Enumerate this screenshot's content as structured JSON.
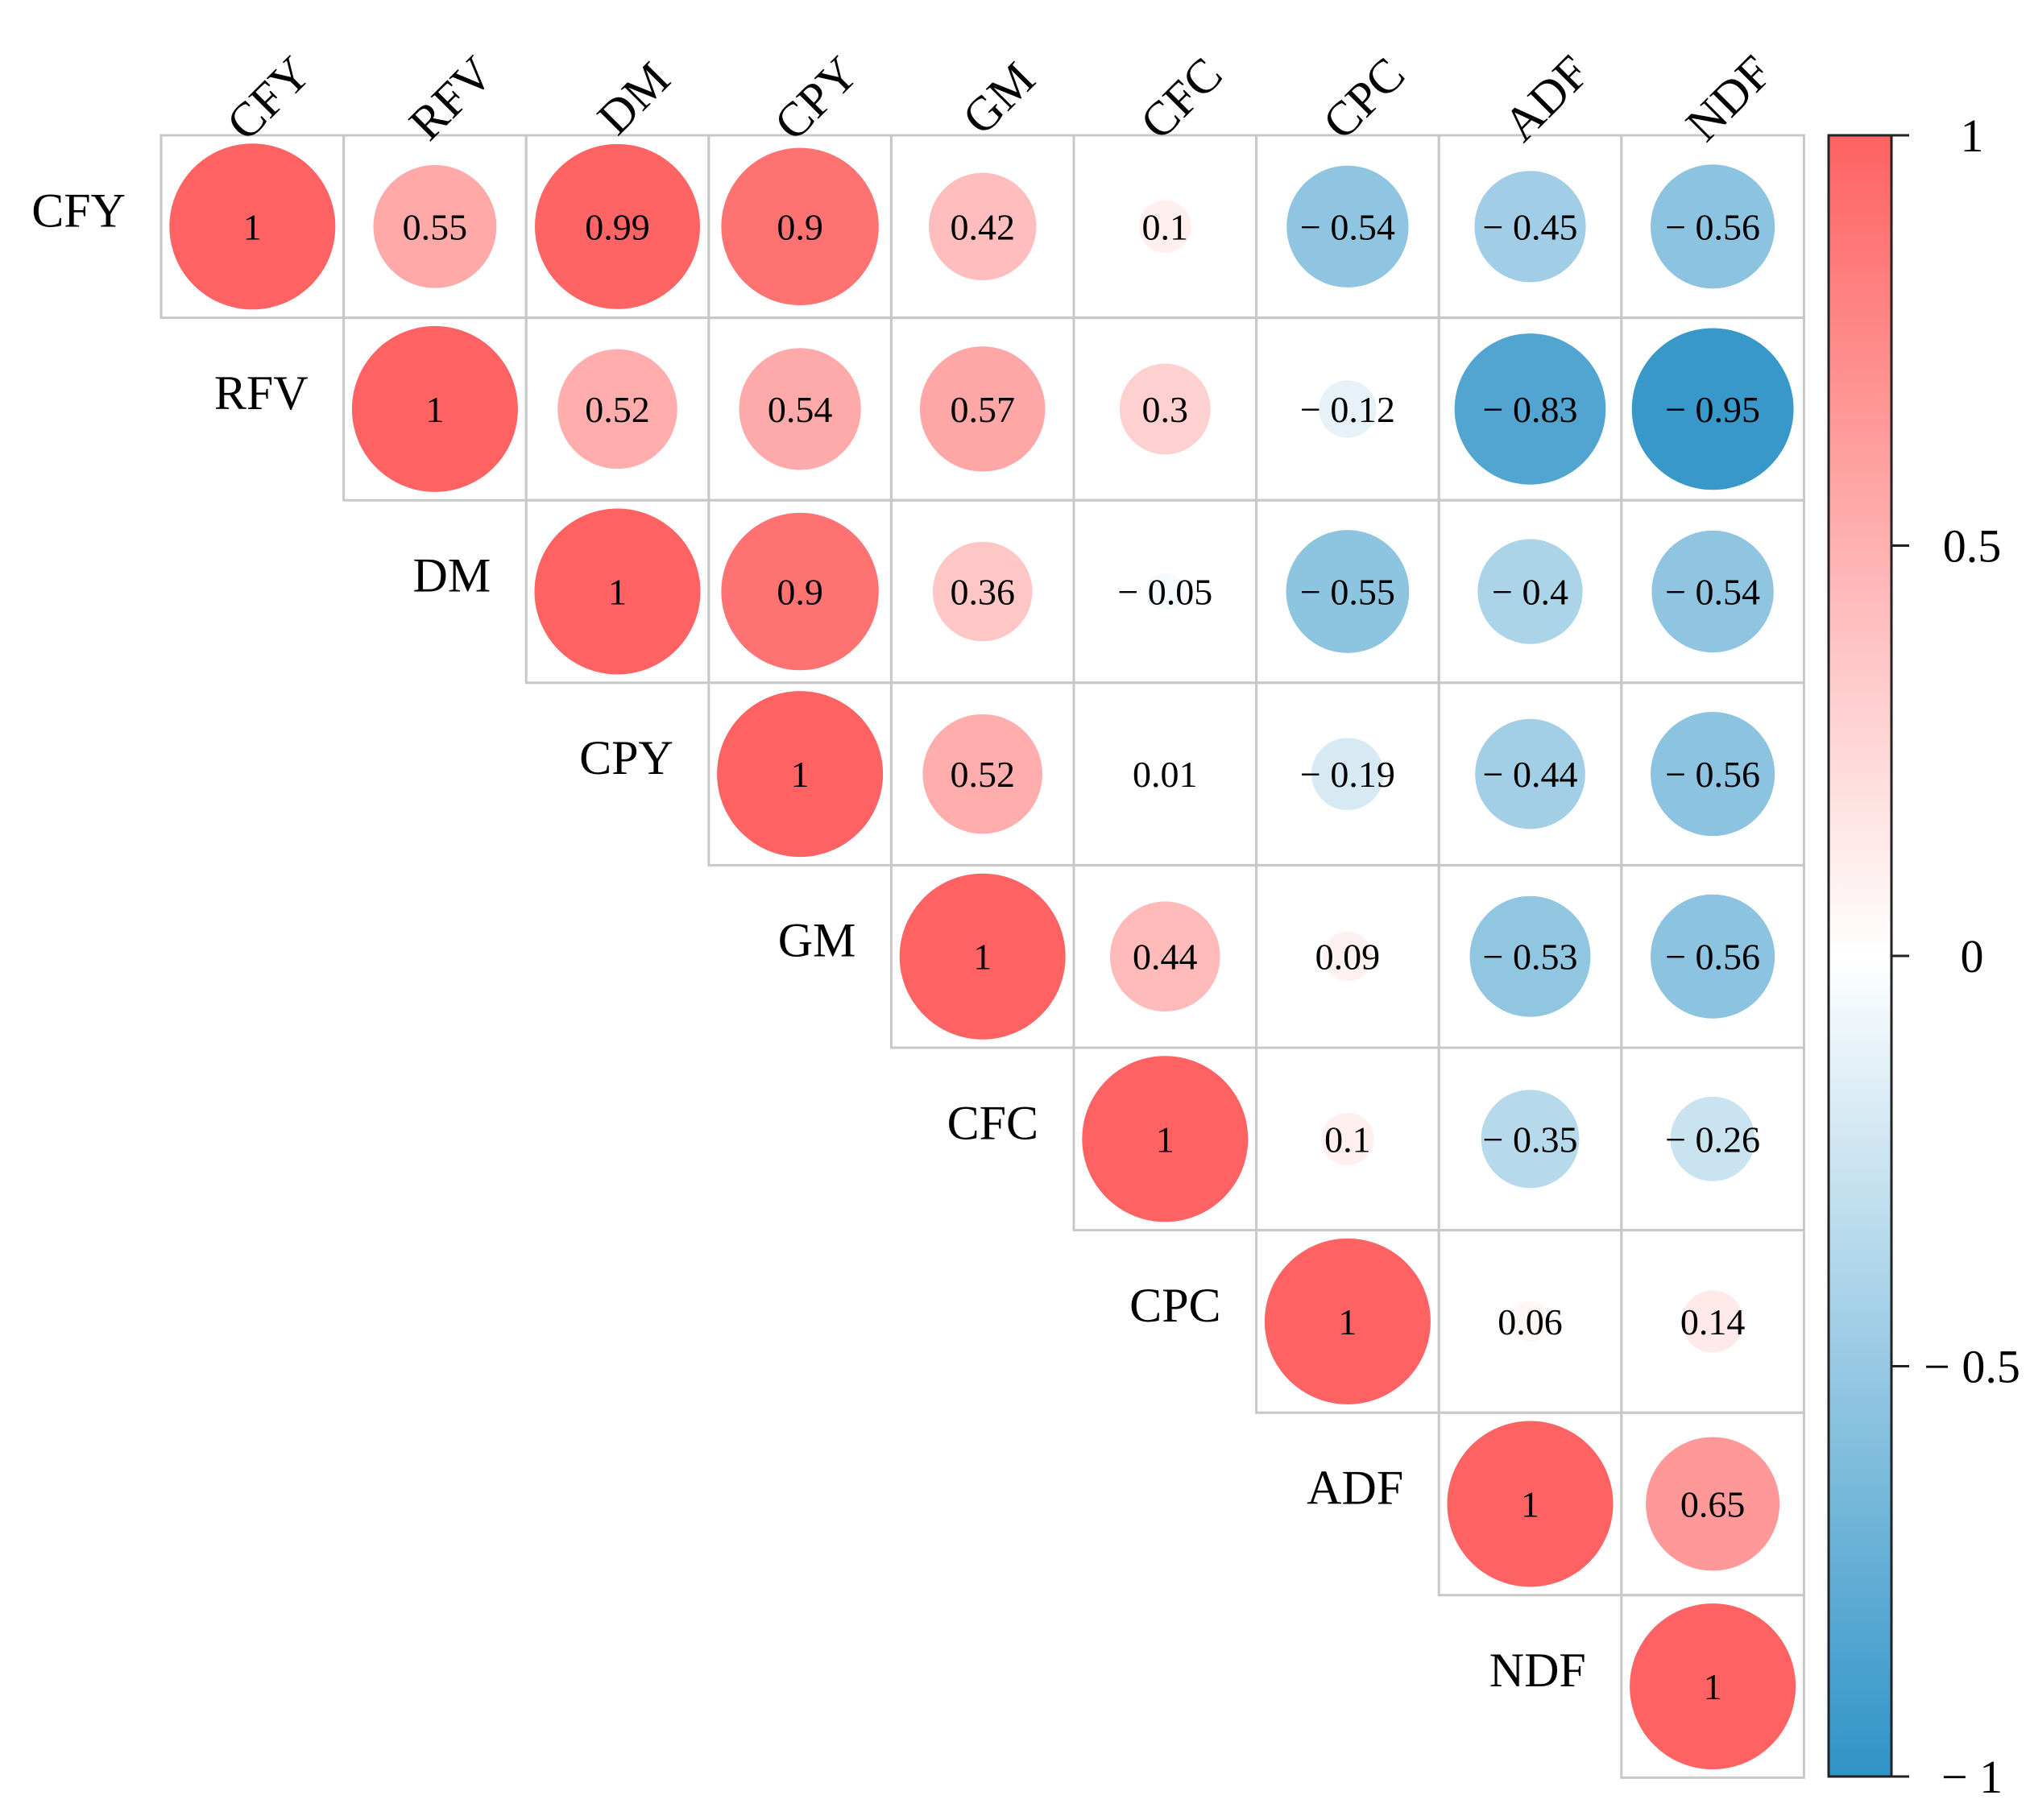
{
  "chart_data": {
    "type": "heatmap",
    "style": "upper-triangle correlation matrix with circles",
    "title": "",
    "variables": [
      "CFY",
      "RFV",
      "DM",
      "CPY",
      "GM",
      "CFC",
      "CPC",
      "ADF",
      "NDF"
    ],
    "matrix": [
      [
        1,
        0.55,
        0.99,
        0.9,
        0.42,
        0.1,
        -0.54,
        -0.45,
        -0.56
      ],
      [
        null,
        1,
        0.52,
        0.54,
        0.57,
        0.3,
        -0.12,
        -0.83,
        -0.95
      ],
      [
        null,
        null,
        1,
        0.9,
        0.36,
        -0.05,
        -0.55,
        -0.4,
        -0.54
      ],
      [
        null,
        null,
        null,
        1,
        0.52,
        0.01,
        -0.19,
        -0.44,
        -0.56
      ],
      [
        null,
        null,
        null,
        null,
        1,
        0.44,
        0.09,
        -0.53,
        -0.56
      ],
      [
        null,
        null,
        null,
        null,
        null,
        1,
        0.1,
        -0.35,
        -0.26
      ],
      [
        null,
        null,
        null,
        null,
        null,
        null,
        1,
        0.06,
        0.14
      ],
      [
        null,
        null,
        null,
        null,
        null,
        null,
        null,
        1,
        0.65
      ],
      [
        null,
        null,
        null,
        null,
        null,
        null,
        null,
        null,
        1
      ]
    ],
    "labels": [
      [
        "1",
        "0.55",
        "0.99",
        "0.9",
        "0.42",
        "0.1",
        "− 0.54",
        "− 0.45",
        "− 0.56"
      ],
      [
        "",
        "1",
        "0.52",
        "0.54",
        "0.57",
        "0.3",
        "− 0.12",
        "− 0.83",
        "− 0.95"
      ],
      [
        "",
        "",
        "1",
        "0.9",
        "0.36",
        "− 0.05",
        "− 0.55",
        "− 0.4",
        "− 0.54"
      ],
      [
        "",
        "",
        "",
        "1",
        "0.52",
        "0.01",
        "− 0.19",
        "− 0.44",
        "− 0.56"
      ],
      [
        "",
        "",
        "",
        "",
        "1",
        "0.44",
        "0.09",
        "− 0.53",
        "− 0.56"
      ],
      [
        "",
        "",
        "",
        "",
        "",
        "1",
        "0.1",
        "− 0.35",
        "− 0.26"
      ],
      [
        "",
        "",
        "",
        "",
        "",
        "",
        "1",
        "0.06",
        "0.14"
      ],
      [
        "",
        "",
        "",
        "",
        "",
        "",
        "",
        "1",
        "0.65"
      ],
      [
        "",
        "",
        "",
        "",
        "",
        "",
        "",
        "",
        "1"
      ]
    ],
    "colorbar": {
      "range": [
        -1,
        1
      ],
      "ticks": [
        1,
        0.5,
        0,
        -0.5,
        -1
      ],
      "tick_labels": [
        "1",
        "0.5",
        "0",
        "− 0.5",
        "− 1"
      ],
      "colors": {
        "pos_end": "#ff6262",
        "mid": "#ffffff",
        "neg_end": "#2f93c7"
      }
    },
    "grid_color": "#c8c8c8"
  }
}
